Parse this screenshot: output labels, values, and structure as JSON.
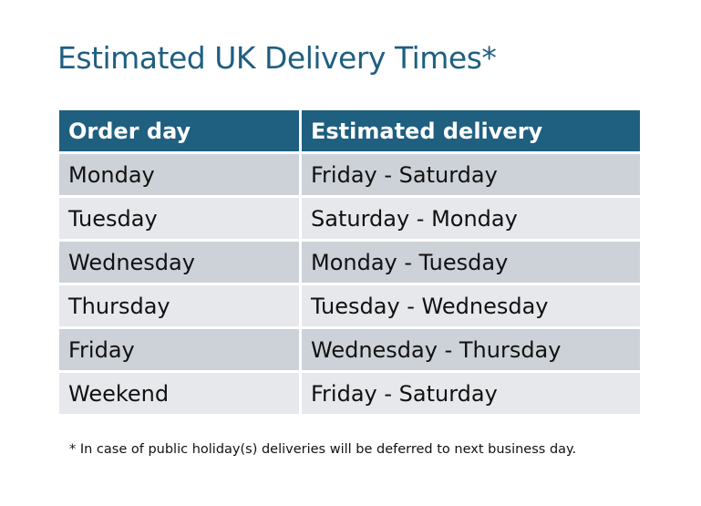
{
  "title": "Estimated UK Delivery Times*",
  "table": {
    "headers": [
      "Order day",
      "Estimated delivery"
    ],
    "rows": [
      [
        "Monday",
        "Friday - Saturday"
      ],
      [
        "Tuesday",
        "Saturday - Monday"
      ],
      [
        "Wednesday",
        "Monday - Tuesday"
      ],
      [
        "Thursday",
        "Tuesday - Wednesday"
      ],
      [
        "Friday",
        "Wednesday - Thursday"
      ],
      [
        "Weekend",
        "Friday - Saturday"
      ]
    ]
  },
  "footnote": "* In case of public holiday(s) deliveries will be deferred to next business day.",
  "colors": {
    "header": "#1f5f80",
    "row_dark": "#cdd1d8",
    "row_light": "#e6e8eb"
  }
}
